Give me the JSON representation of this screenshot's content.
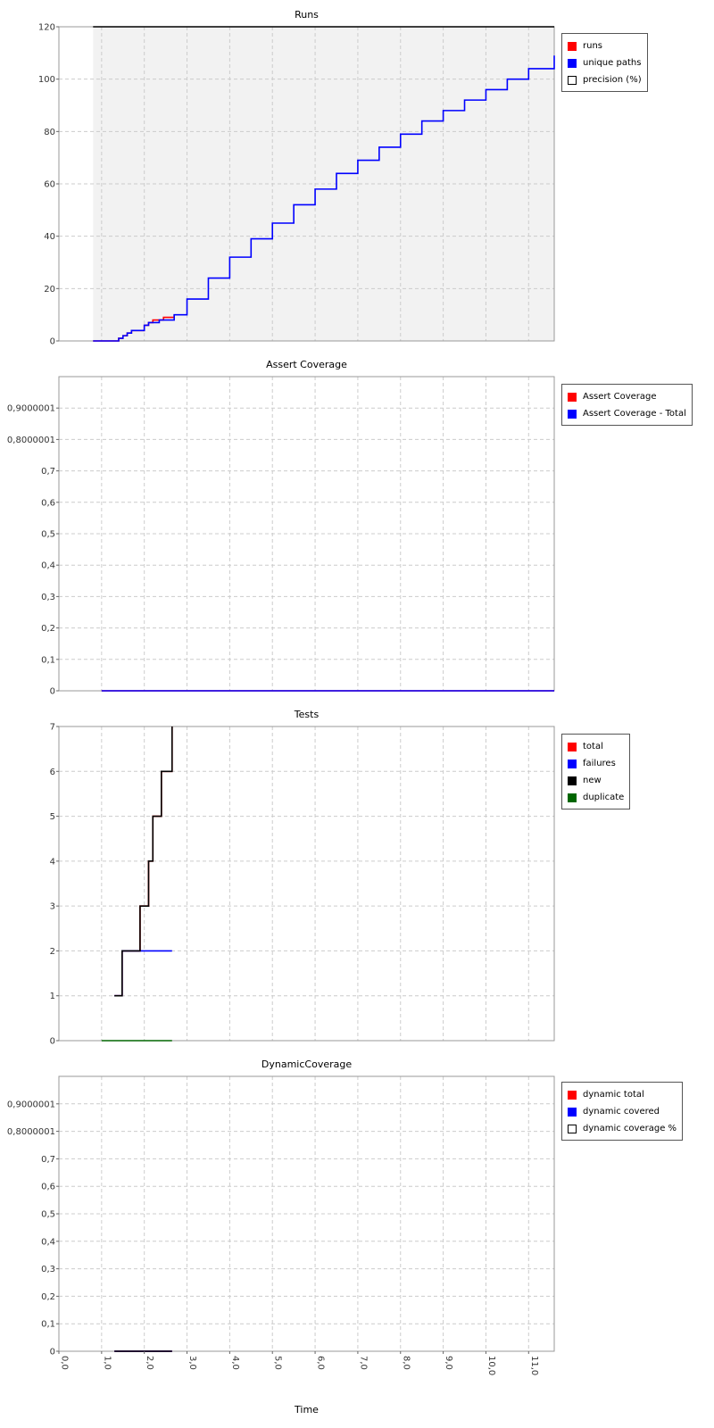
{
  "x_axis": {
    "label": "Time",
    "range": [
      0,
      11.6
    ],
    "ticks": [
      0,
      1,
      2,
      3,
      4,
      5,
      6,
      7,
      8,
      9,
      10,
      11
    ],
    "tick_labels": [
      "0,0",
      "1,0",
      "2,0",
      "3,0",
      "4,0",
      "5,0",
      "6,0",
      "7,0",
      "8,0",
      "9,0",
      "10,0",
      "11,0"
    ]
  },
  "chart_data": [
    {
      "type": "line",
      "title": "Runs",
      "xlabel": "Time",
      "ylabel": "",
      "xlim": [
        0,
        11.6
      ],
      "ylim": [
        0,
        120
      ],
      "grid": true,
      "legend_placement": "right",
      "shaded_x_range": [
        0.8,
        11.6
      ],
      "y_ticks": [
        0,
        20,
        40,
        60,
        80,
        100,
        120
      ],
      "y_tick_labels": [
        "0",
        "20",
        "40",
        "60",
        "80",
        "100",
        "120"
      ],
      "series": [
        {
          "name": "runs",
          "color": "#ff0000",
          "step": true,
          "x": [
            0.8,
            1.3,
            1.4,
            1.5,
            1.6,
            1.7,
            1.9,
            2.0,
            2.1,
            2.2,
            2.35,
            2.45,
            2.6,
            2.7
          ],
          "y": [
            0,
            0,
            1,
            2,
            3,
            4,
            4,
            6,
            7,
            8,
            8,
            9,
            9,
            10
          ]
        },
        {
          "name": "unique paths",
          "color": "#0000ff",
          "step": true,
          "x": [
            0.8,
            1.3,
            1.4,
            1.5,
            1.6,
            1.7,
            1.9,
            2.0,
            2.1,
            2.2,
            2.35,
            2.6,
            2.7,
            3.0,
            3.5,
            4.0,
            4.5,
            5.0,
            5.5,
            6.0,
            6.5,
            7.0,
            7.5,
            8.0,
            8.5,
            9.0,
            9.5,
            10.0,
            10.5,
            11.0,
            11.6
          ],
          "y": [
            0,
            0,
            1,
            2,
            3,
            4,
            4,
            6,
            7,
            7,
            8,
            8,
            10,
            16,
            24,
            32,
            39,
            45,
            52,
            58,
            64,
            69,
            74,
            79,
            84,
            88,
            92,
            96,
            100,
            104,
            109
          ]
        },
        {
          "name": "precision (%)",
          "color": "#000000",
          "step": false,
          "x": [
            0.8,
            11.6
          ],
          "y": [
            120,
            120
          ]
        }
      ]
    },
    {
      "type": "line",
      "title": "Assert Coverage",
      "xlabel": "Time",
      "ylabel": "",
      "xlim": [
        0,
        11.6
      ],
      "ylim": [
        0,
        1
      ],
      "grid": true,
      "legend_placement": "right",
      "y_ticks": [
        0,
        0.1,
        0.2,
        0.3,
        0.4,
        0.5,
        0.6,
        0.7,
        0.8000001,
        0.9000001
      ],
      "y_tick_labels": [
        "0",
        "0,1",
        "0,2",
        "0,3",
        "0,4",
        "0,5",
        "0,6",
        "0,7",
        "0,8000001",
        "0,9000001"
      ],
      "series": [
        {
          "name": "Assert Coverage",
          "color": "#ff0000",
          "step": false,
          "x": [
            1.0,
            11.6
          ],
          "y": [
            0,
            0
          ]
        },
        {
          "name": "Assert Coverage - Total",
          "color": "#0000ff",
          "step": false,
          "x": [
            1.0,
            11.6
          ],
          "y": [
            0,
            0
          ]
        }
      ]
    },
    {
      "type": "line",
      "title": "Tests",
      "xlabel": "Time",
      "ylabel": "",
      "xlim": [
        0,
        11.6
      ],
      "ylim": [
        0,
        7
      ],
      "grid": true,
      "legend_placement": "right",
      "y_ticks": [
        0,
        1,
        2,
        3,
        4,
        5,
        6,
        7
      ],
      "y_tick_labels": [
        "0",
        "1",
        "2",
        "3",
        "4",
        "5",
        "6",
        "7"
      ],
      "series": [
        {
          "name": "total",
          "color": "#ff0000",
          "step": true,
          "x": [
            1.3,
            1.48,
            1.9,
            2.1,
            2.2,
            2.4,
            2.65
          ],
          "y": [
            1,
            2,
            3,
            4,
            5,
            6,
            7
          ]
        },
        {
          "name": "failures",
          "color": "#0000ff",
          "step": true,
          "x": [
            1.3,
            1.48,
            2.65
          ],
          "y": [
            1,
            2,
            2
          ]
        },
        {
          "name": "new",
          "color": "#000000",
          "step": true,
          "x": [
            1.3,
            1.48,
            1.9,
            2.1,
            2.2,
            2.4,
            2.65
          ],
          "y": [
            1,
            2,
            3,
            4,
            5,
            6,
            7
          ]
        },
        {
          "name": "duplicate",
          "color": "#006600",
          "step": false,
          "x": [
            1.0,
            2.65
          ],
          "y": [
            0,
            0
          ]
        }
      ]
    },
    {
      "type": "line",
      "title": "DynamicCoverage",
      "xlabel": "Time",
      "ylabel": "",
      "xlim": [
        0,
        11.6
      ],
      "ylim": [
        0,
        1
      ],
      "grid": true,
      "legend_placement": "right",
      "y_ticks": [
        0,
        0.1,
        0.2,
        0.3,
        0.4,
        0.5,
        0.6,
        0.7,
        0.8000001,
        0.9000001
      ],
      "y_tick_labels": [
        "0",
        "0,1",
        "0,2",
        "0,3",
        "0,4",
        "0,5",
        "0,6",
        "0,7",
        "0,8000001",
        "0,9000001"
      ],
      "series": [
        {
          "name": "dynamic total",
          "color": "#ff0000",
          "step": false,
          "x": [
            1.3,
            2.65
          ],
          "y": [
            0,
            0
          ]
        },
        {
          "name": "dynamic covered",
          "color": "#0000ff",
          "step": false,
          "x": [
            1.3,
            2.65
          ],
          "y": [
            0,
            0
          ]
        },
        {
          "name": "dynamic coverage %",
          "color": "#000000",
          "step": false,
          "x": [
            1.3,
            2.65
          ],
          "y": [
            0,
            0
          ]
        }
      ]
    }
  ],
  "legends": [
    {
      "items": [
        {
          "label": "runs",
          "swatch": "#ff0000"
        },
        {
          "label": "unique paths",
          "swatch": "#0000ff"
        },
        {
          "label": "precision (%)",
          "swatch": "empty"
        }
      ]
    },
    {
      "items": [
        {
          "label": "Assert Coverage",
          "swatch": "#ff0000"
        },
        {
          "label": "Assert Coverage - Total",
          "swatch": "#0000ff"
        }
      ]
    },
    {
      "items": [
        {
          "label": "total",
          "swatch": "#ff0000"
        },
        {
          "label": "failures",
          "swatch": "#0000ff"
        },
        {
          "label": "new",
          "swatch": "#000000"
        },
        {
          "label": "duplicate",
          "swatch": "#006600"
        }
      ]
    },
    {
      "items": [
        {
          "label": "dynamic total",
          "swatch": "#ff0000"
        },
        {
          "label": "dynamic covered",
          "swatch": "#0000ff"
        },
        {
          "label": "dynamic coverage %",
          "swatch": "empty"
        }
      ]
    }
  ]
}
